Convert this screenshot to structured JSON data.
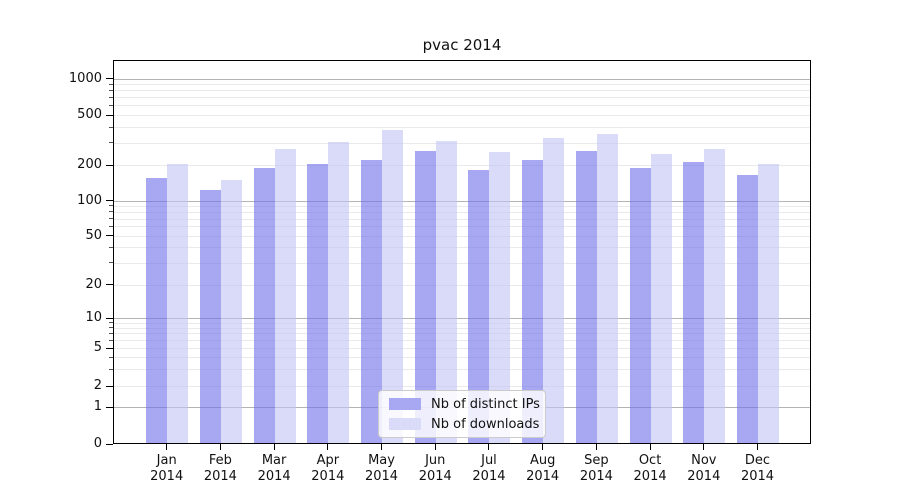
{
  "title": "pvac 2014",
  "legend": {
    "items": [
      {
        "label": "Nb of distinct IPs",
        "color": "#a8a8f2"
      },
      {
        "label": "Nb of downloads",
        "color": "#dadaf9"
      }
    ]
  },
  "y_axis": {
    "tick_labels": [
      "1000",
      "500",
      "200",
      "100",
      "50",
      "20",
      "10",
      "5",
      "2",
      "1",
      "0"
    ]
  },
  "chart_data": {
    "type": "bar",
    "title": "pvac 2014",
    "categories": [
      "Jan 2014",
      "Feb 2014",
      "Mar 2014",
      "Apr 2014",
      "May 2014",
      "Jun 2014",
      "Jul 2014",
      "Aug 2014",
      "Sep 2014",
      "Oct 2014",
      "Nov 2014",
      "Dec 2014"
    ],
    "series": [
      {
        "name": "Nb of distinct IPs",
        "color_fill": "rgba(110,110,233,0.6)",
        "color_flat": "#a8a8f2",
        "values": [
          152,
          121,
          185,
          201,
          215,
          252,
          179,
          216,
          255,
          184,
          206,
          161
        ]
      },
      {
        "name": "Nb of downloads",
        "color_fill": "rgba(193,193,245,0.6)",
        "color_flat": "#dadaf9",
        "values": [
          201,
          146,
          265,
          300,
          374,
          303,
          247,
          321,
          344,
          241,
          263,
          201
        ]
      }
    ],
    "yscale": "symlog",
    "ylim": [
      0,
      1400
    ],
    "y_ticks": [
      0,
      1,
      2,
      5,
      10,
      20,
      50,
      100,
      200,
      500,
      1000
    ],
    "grid": true,
    "grid_major_decades": [
      1,
      10,
      100,
      1000
    ],
    "legend_position": "lower center",
    "xlabel": "",
    "ylabel": ""
  }
}
